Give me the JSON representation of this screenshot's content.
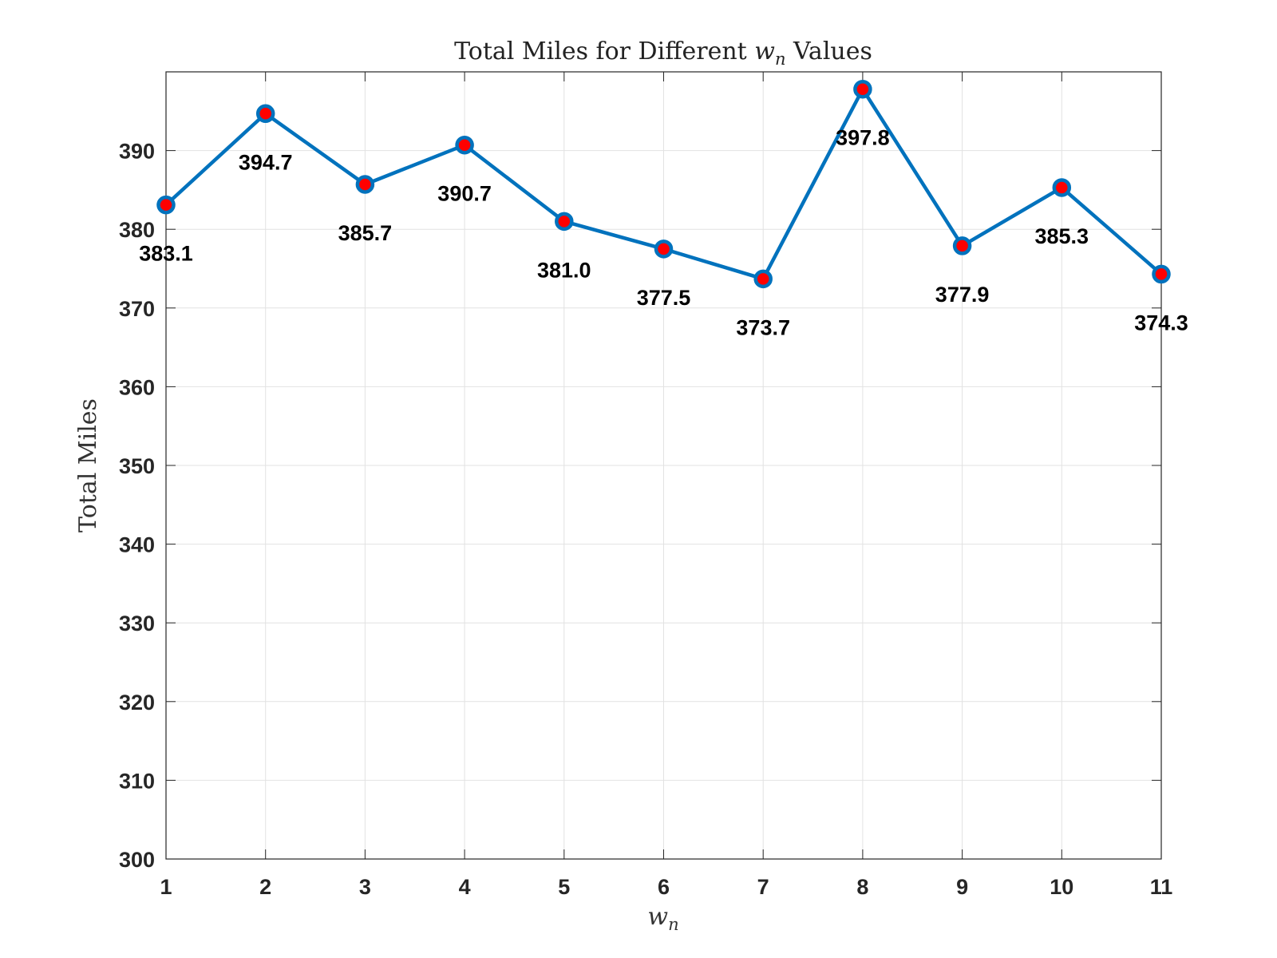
{
  "chart_data": {
    "type": "line",
    "title_prefix": "Total Miles for Different ",
    "title_var": "w",
    "title_sub": "n",
    "title_suffix": " Values",
    "xlabel_var": "w",
    "xlabel_sub": "n",
    "ylabel": "Total Miles",
    "x": [
      1,
      2,
      3,
      4,
      5,
      6,
      7,
      8,
      9,
      10,
      11
    ],
    "values": [
      383.1,
      394.7,
      385.7,
      390.7,
      381.0,
      377.5,
      373.7,
      397.8,
      377.9,
      385.3,
      374.3
    ],
    "data_labels": [
      "383.1",
      "394.7",
      "385.7",
      "390.7",
      "381.0",
      "377.5",
      "373.7",
      "397.8",
      "377.9",
      "385.3",
      "374.3"
    ],
    "xticks": [
      "1",
      "2",
      "3",
      "4",
      "5",
      "6",
      "7",
      "8",
      "9",
      "10",
      "11"
    ],
    "yticks": [
      "300",
      "310",
      "320",
      "330",
      "340",
      "350",
      "360",
      "370",
      "380",
      "390"
    ],
    "xlim": [
      1,
      11
    ],
    "ylim": [
      300,
      400
    ],
    "grid": true,
    "line_color": "#0072BD",
    "marker_face_color": "#FF0000",
    "marker_edge_color": "#0072BD"
  }
}
